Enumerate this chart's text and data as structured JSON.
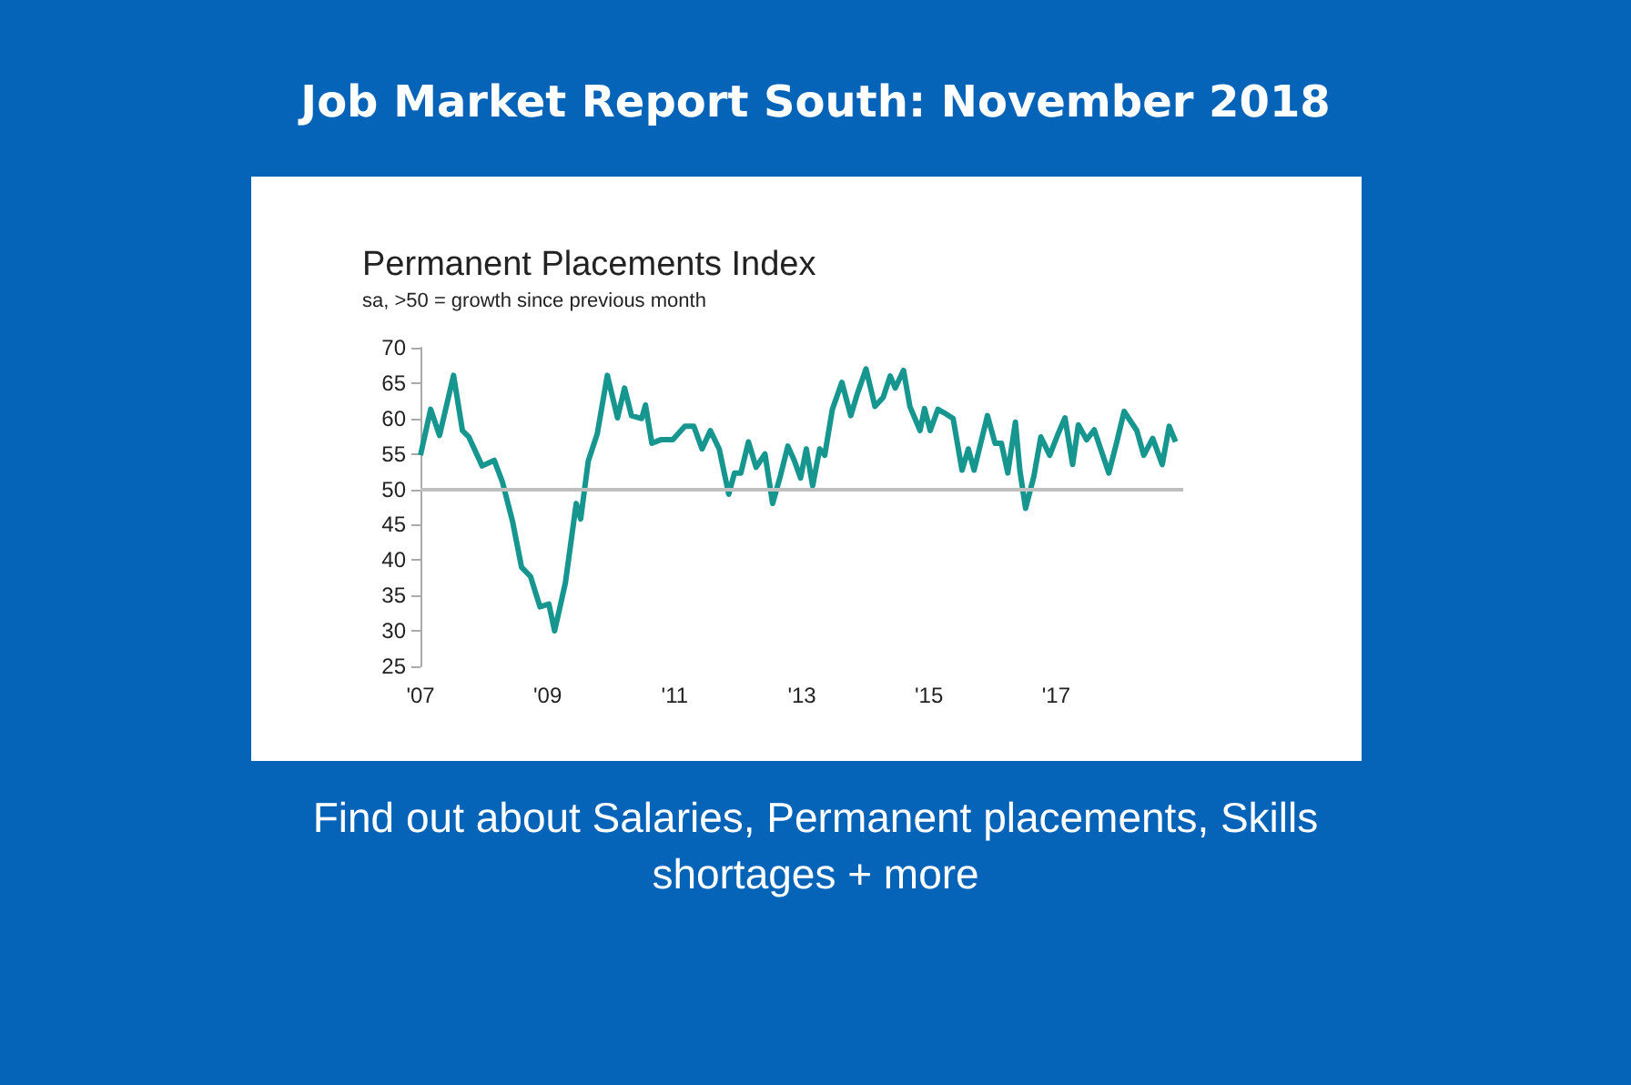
{
  "chart_data": {
    "type": "line",
    "title": "Permanent Placements Index",
    "subtitle": "sa, >50 = growth since previous month",
    "annotations": [
      "Job Market Report South: November 2018",
      "Find out about Salaries, Permanent placements, Skills shortages + more"
    ],
    "x": [
      2007.0,
      2007.16,
      2007.3,
      2007.52,
      2007.66,
      2007.76,
      2007.97,
      2008.16,
      2008.29,
      2008.45,
      2008.59,
      2008.73,
      2008.88,
      2009.02,
      2009.11,
      2009.28,
      2009.45,
      2009.52,
      2009.64,
      2009.78,
      2009.94,
      2010.1,
      2010.21,
      2010.32,
      2010.48,
      2010.54,
      2010.64,
      2010.78,
      2010.97,
      2011.16,
      2011.3,
      2011.43,
      2011.56,
      2011.7,
      2011.85,
      2011.94,
      2012.04,
      2012.16,
      2012.28,
      2012.42,
      2012.54,
      2012.66,
      2012.78,
      2012.88,
      2012.98,
      2013.07,
      2013.17,
      2013.28,
      2013.36,
      2013.48,
      2013.63,
      2013.77,
      2013.87,
      2014.01,
      2014.15,
      2014.28,
      2014.39,
      2014.47,
      2014.6,
      2014.7,
      2014.86,
      2014.93,
      2015.02,
      2015.14,
      2015.24,
      2015.38,
      2015.52,
      2015.62,
      2015.71,
      2015.92,
      2016.04,
      2016.14,
      2016.24,
      2016.36,
      2016.43,
      2016.52,
      2016.65,
      2016.76,
      2016.9,
      2017.03,
      2017.14,
      2017.26,
      2017.35,
      2017.48,
      2017.6,
      2017.83,
      2017.95,
      2018.07,
      2018.27,
      2018.38,
      2018.52,
      2018.67,
      2018.78,
      2018.88
    ],
    "series": [
      {
        "color": "#16968f",
        "values": [
          54.8,
          61.3,
          57.6,
          66.1,
          58.3,
          57.4,
          53.3,
          54.1,
          51.0,
          45.4,
          39.0,
          37.7,
          33.4,
          33.8,
          30.0,
          36.8,
          48.0,
          45.8,
          54.0,
          57.8,
          66.1,
          60.1,
          64.3,
          60.4,
          60.0,
          61.9,
          56.5,
          57.0,
          57.0,
          58.9,
          58.9,
          55.7,
          58.3,
          55.7,
          49.3,
          52.3,
          52.3,
          56.7,
          53.1,
          55.0,
          48.0,
          51.8,
          56.1,
          54.1,
          51.6,
          55.7,
          50.5,
          55.7,
          54.8,
          61.3,
          65.1,
          60.4,
          63.4,
          67.0,
          61.7,
          63.0,
          66.0,
          64.3,
          66.8,
          61.7,
          58.3,
          61.4,
          58.3,
          61.3,
          60.8,
          60.0,
          52.7,
          55.7,
          52.7,
          60.4,
          56.5,
          56.5,
          52.3,
          59.5,
          52.7,
          47.3,
          51.8,
          57.4,
          54.8,
          57.8,
          60.1,
          53.5,
          59.1,
          57.0,
          58.4,
          52.3,
          56.5,
          61.0,
          58.3,
          54.8,
          57.2,
          53.5,
          58.9,
          56.7
        ]
      }
    ],
    "xlim": [
      2007,
      2019
    ],
    "xticks": [
      {
        "value": 2007,
        "label": "'07"
      },
      {
        "value": 2009,
        "label": "'09"
      },
      {
        "value": 2011,
        "label": "'11"
      },
      {
        "value": 2013,
        "label": "'13"
      },
      {
        "value": 2015,
        "label": "'15"
      },
      {
        "value": 2017,
        "label": "'17"
      }
    ],
    "ylim": [
      25,
      70
    ],
    "yticks": [
      25,
      30,
      35,
      40,
      45,
      50,
      55,
      60,
      65,
      70
    ],
    "ref_lines": [
      {
        "axis": "y",
        "value": 50,
        "color": "#bfbfbf"
      }
    ],
    "grid": false,
    "marker": "none",
    "line_style": "solid"
  }
}
